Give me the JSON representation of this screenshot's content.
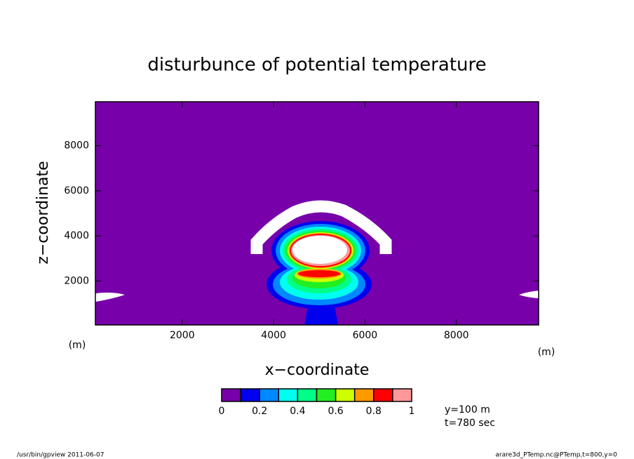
{
  "chart_data": {
    "type": "contour",
    "title": "disturbunce of potential temperature",
    "xlabel": "x−coordinate",
    "ylabel": "z−coordinate",
    "xunit": "(m)",
    "yunit": "(m)",
    "xlim": [
      100,
      9800
    ],
    "ylim": [
      50,
      9950
    ],
    "xticks": [
      2000,
      4000,
      6000,
      8000
    ],
    "yticks": [
      2000,
      4000,
      6000,
      8000
    ],
    "colorbar": {
      "levels": [
        0,
        0.1,
        0.2,
        0.3,
        0.4,
        0.5,
        0.6,
        0.7,
        0.8,
        0.9,
        1
      ],
      "colors": [
        "#7700aa",
        "#0000ee",
        "#0088ff",
        "#00ffee",
        "#00ff88",
        "#22ee22",
        "#ccff00",
        "#ff9900",
        "#ff0000",
        "#ff9999"
      ],
      "ticks": [
        0,
        0.2,
        0.4,
        0.6,
        0.8,
        1
      ]
    },
    "annotations": [
      "y=100 m",
      "t=780 sec"
    ],
    "footer_left": "/usr/bin/gpview   2011-06-07",
    "footer_right": "arare3d_PTemp.nc@PTemp,t=800,y=0"
  }
}
